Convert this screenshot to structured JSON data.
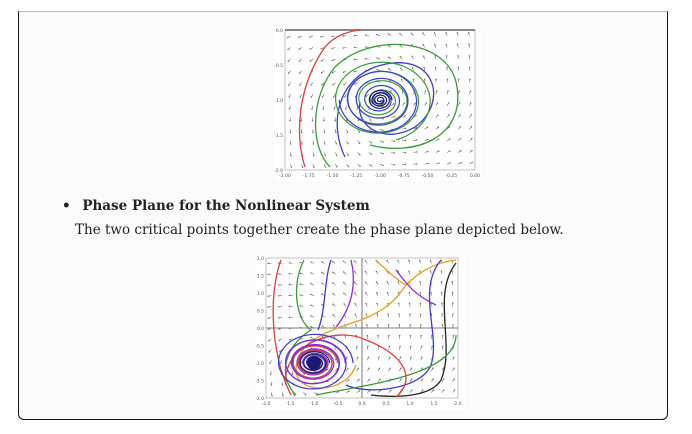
{
  "section": {
    "bullet": "•",
    "heading": "Phase Plane for the Nonlinear System",
    "body": "The two critical points together create the phase plane depicted below."
  },
  "figures": [
    {
      "xticks": [
        "-2.00",
        "-1.75",
        "-1.50",
        "-1.25",
        "-1.00",
        "-0.75",
        "-0.50",
        "-0.25",
        "0.00"
      ],
      "yticks": [
        "0.0",
        "-0.5",
        "-1.0",
        "-1.5",
        "-2.0"
      ]
    },
    {
      "xticks": [
        "-2.0",
        "-1.5",
        "-1.0",
        "-0.5",
        "0.0",
        "0.5",
        "1.0",
        "1.5",
        "2.0"
      ],
      "yticks": [
        "2.0",
        "1.5",
        "1.0",
        "0.5",
        "0.0",
        "-0.5",
        "-1.0",
        "-1.5",
        "-2.0"
      ]
    }
  ],
  "colors": {
    "red": "#e03c3c",
    "green": "#3a9a3a",
    "blue": "#3b3bd8",
    "navy": "#1a1a6e",
    "purple": "#8a2be2",
    "orange": "#e8a020",
    "black": "#222222"
  }
}
